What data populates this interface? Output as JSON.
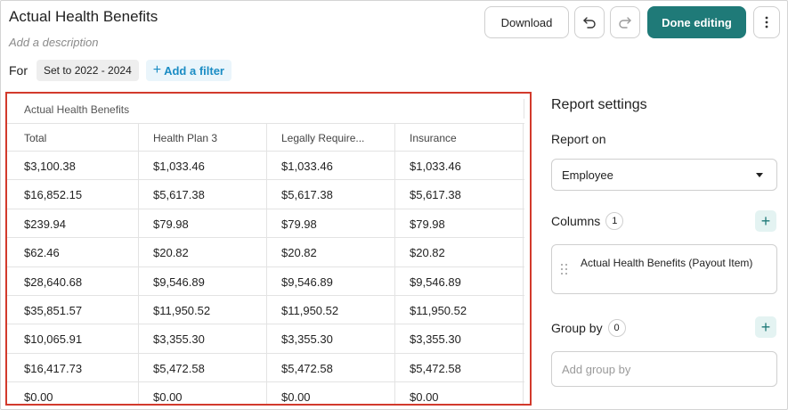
{
  "report": {
    "title": "Actual Health Benefits",
    "description_placeholder": "Add a description"
  },
  "toolbar": {
    "download_label": "Download",
    "done_label": "Done editing"
  },
  "filters": {
    "for_label": "For",
    "period_chip": "Set to 2022 - 2024",
    "add_filter_label": "Add a filter"
  },
  "table": {
    "group_header": "Actual Health Benefits",
    "columns": [
      "Total",
      "Health Plan 3",
      "Legally Require...",
      "Insurance"
    ],
    "rows": [
      [
        "$3,100.38",
        "$1,033.46",
        "$1,033.46",
        "$1,033.46"
      ],
      [
        "$16,852.15",
        "$5,617.38",
        "$5,617.38",
        "$5,617.38"
      ],
      [
        "$239.94",
        "$79.98",
        "$79.98",
        "$79.98"
      ],
      [
        "$62.46",
        "$20.82",
        "$20.82",
        "$20.82"
      ],
      [
        "$28,640.68",
        "$9,546.89",
        "$9,546.89",
        "$9,546.89"
      ],
      [
        "$35,851.57",
        "$11,950.52",
        "$11,950.52",
        "$11,950.52"
      ],
      [
        "$10,065.91",
        "$3,355.30",
        "$3,355.30",
        "$3,355.30"
      ],
      [
        "$16,417.73",
        "$5,472.58",
        "$5,472.58",
        "$5,472.58"
      ],
      [
        "$0.00",
        "$0.00",
        "$0.00",
        "$0.00"
      ]
    ]
  },
  "settings": {
    "title": "Report settings",
    "report_on_label": "Report on",
    "report_on_value": "Employee",
    "columns_label": "Columns",
    "columns_count": "1",
    "column_item": "Actual Health Benefits  (Payout Item)",
    "group_by_label": "Group by",
    "group_by_count": "0",
    "group_by_placeholder": "Add group by"
  },
  "colors": {
    "primary": "#1f7a78",
    "selection_border": "#d23a2c",
    "link": "#1a8cc4"
  }
}
